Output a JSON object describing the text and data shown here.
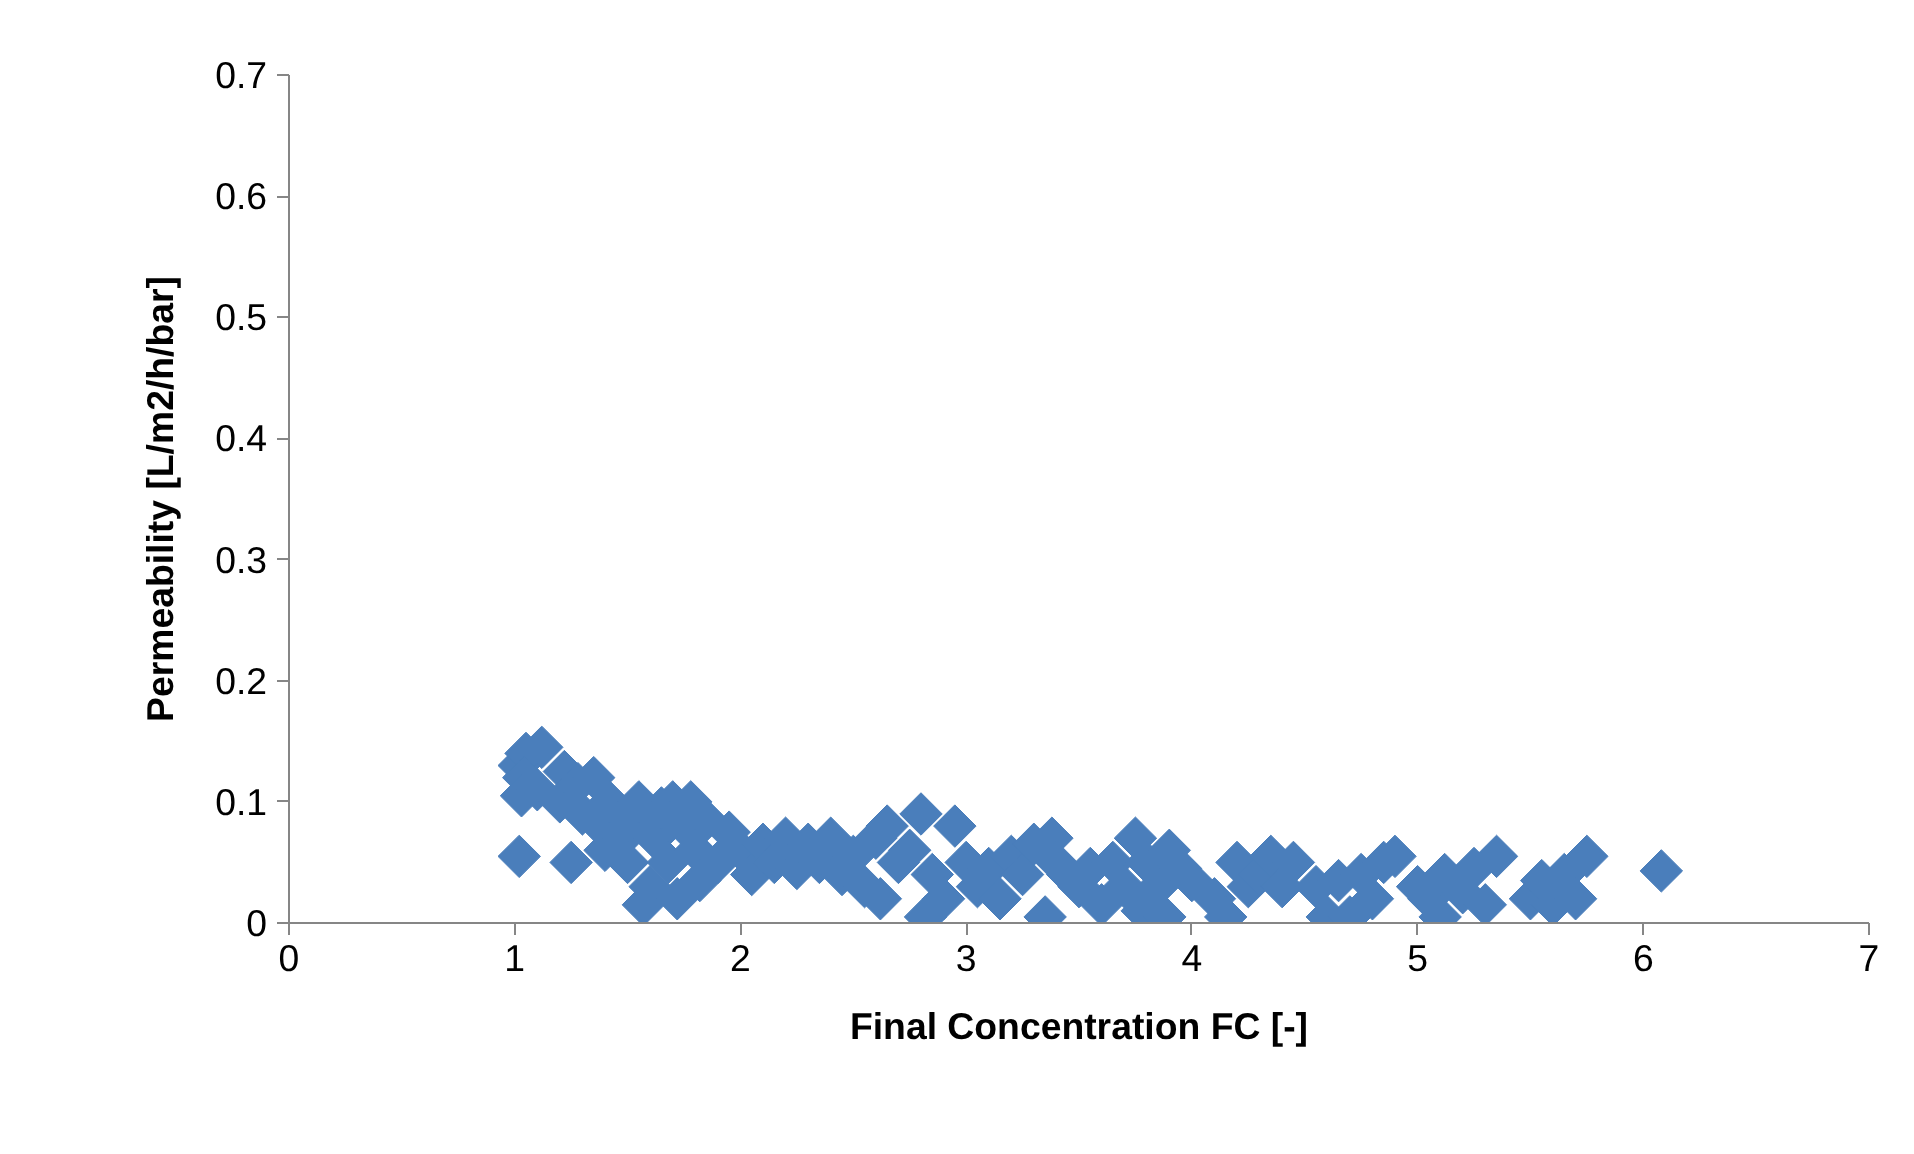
{
  "chart_data": {
    "type": "scatter",
    "xlabel": "Final Concentration FC [-]",
    "ylabel": "Permeability [L/m2/h/bar]",
    "xlim": [
      0,
      7
    ],
    "xticks": [
      0,
      1,
      2,
      3,
      4,
      5,
      6,
      7
    ],
    "ylim": [
      0,
      0.7
    ],
    "yticks": [
      0,
      0.1,
      0.2,
      0.3,
      0.4,
      0.5,
      0.6,
      0.7
    ],
    "grid": false,
    "marker": "diamond",
    "series": [
      {
        "color": "#4a7ebb",
        "x": [
          1.02,
          1.05,
          1.04,
          1.03,
          1.02,
          1.12,
          1.1,
          1.2,
          1.22,
          1.25,
          1.28,
          1.3,
          1.35,
          1.38,
          1.4,
          1.42,
          1.48,
          1.5,
          1.52,
          1.55,
          1.57,
          1.6,
          1.62,
          1.65,
          1.68,
          1.7,
          1.72,
          1.75,
          1.78,
          1.8,
          1.82,
          1.85,
          1.9,
          1.95,
          2.0,
          2.05,
          2.1,
          2.15,
          2.2,
          2.25,
          2.3,
          2.35,
          2.4,
          2.45,
          2.5,
          2.55,
          2.6,
          2.62,
          2.65,
          2.7,
          2.75,
          2.8,
          2.82,
          2.85,
          2.9,
          2.95,
          3.0,
          3.05,
          3.1,
          3.15,
          3.2,
          3.25,
          3.3,
          3.35,
          3.38,
          3.4,
          3.45,
          3.5,
          3.55,
          3.6,
          3.65,
          3.7,
          3.75,
          3.78,
          3.8,
          3.85,
          3.88,
          3.9,
          3.95,
          4.0,
          4.1,
          4.15,
          4.2,
          4.25,
          4.3,
          4.35,
          4.4,
          4.45,
          4.55,
          4.6,
          4.65,
          4.7,
          4.75,
          4.8,
          4.85,
          4.9,
          5.0,
          5.05,
          5.1,
          5.12,
          5.2,
          5.25,
          5.3,
          5.35,
          5.5,
          5.55,
          5.6,
          5.65,
          5.7,
          5.75,
          6.08
        ],
        "values": [
          0.13,
          0.14,
          0.12,
          0.105,
          0.055,
          0.145,
          0.11,
          0.1,
          0.125,
          0.05,
          0.115,
          0.09,
          0.12,
          0.08,
          0.06,
          0.1,
          0.07,
          0.05,
          0.085,
          0.1,
          0.015,
          0.03,
          0.07,
          0.095,
          0.05,
          0.1,
          0.02,
          0.08,
          0.1,
          0.06,
          0.035,
          0.085,
          0.05,
          0.075,
          0.06,
          0.04,
          0.065,
          0.05,
          0.07,
          0.045,
          0.065,
          0.05,
          0.07,
          0.04,
          0.055,
          0.03,
          0.07,
          0.02,
          0.08,
          0.05,
          0.06,
          0.09,
          0.005,
          0.04,
          0.02,
          0.08,
          0.05,
          0.03,
          0.045,
          0.02,
          0.055,
          0.04,
          0.065,
          0.005,
          0.07,
          0.05,
          0.04,
          0.03,
          0.045,
          0.015,
          0.05,
          0.03,
          0.07,
          0.01,
          0.05,
          0.03,
          0.005,
          0.06,
          0.045,
          0.035,
          0.02,
          0.005,
          0.05,
          0.03,
          0.04,
          0.055,
          0.03,
          0.05,
          0.03,
          0.005,
          0.035,
          0.005,
          0.04,
          0.02,
          0.05,
          0.055,
          0.03,
          0.02,
          0.005,
          0.04,
          0.025,
          0.045,
          0.015,
          0.055,
          0.02,
          0.035,
          0.015,
          0.04,
          0.02,
          0.055,
          0.043
        ]
      }
    ]
  }
}
